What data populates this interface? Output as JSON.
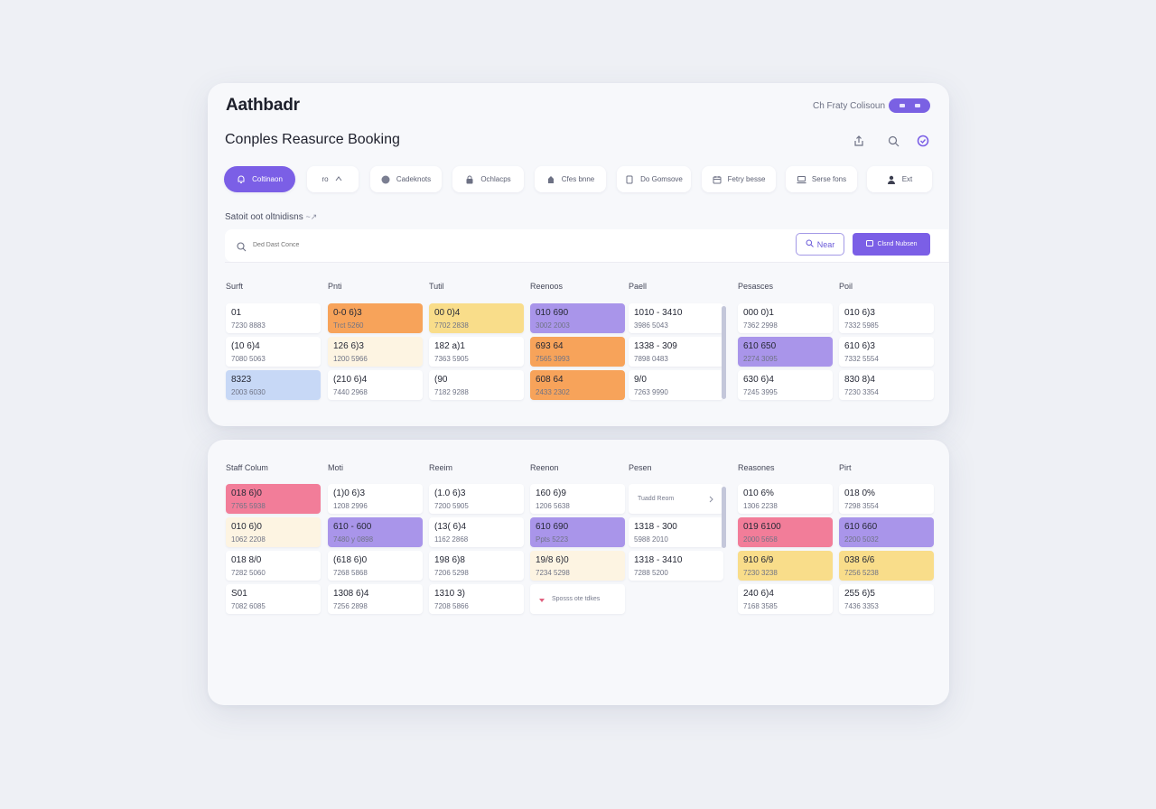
{
  "app": {
    "brand": "Aathbadr",
    "title": "Conples Reasurce Booking"
  },
  "header": {
    "link_text": "Ch Fraty Colisoun",
    "icons": [
      "share-icon",
      "search-icon",
      "check-circle-icon"
    ]
  },
  "filters": [
    {
      "label": "Coltinaon",
      "icon": "bell-icon",
      "active": true
    },
    {
      "label": "ro",
      "icon": "chevron-icon",
      "active": false
    },
    {
      "label": "Cadeknots",
      "icon": "circle-icon",
      "active": false
    },
    {
      "label": "Ochlacps",
      "icon": "lock-icon",
      "active": false
    },
    {
      "label": "Cfes bnne",
      "icon": "user-icon",
      "active": false
    },
    {
      "label": "Do Gomsove",
      "icon": "document-icon",
      "active": false
    },
    {
      "label": "Fetry besse",
      "icon": "calendar-icon",
      "active": false
    },
    {
      "label": "Serse fons",
      "icon": "laptop-icon",
      "active": false
    },
    {
      "label": "Ext",
      "icon": "person-icon",
      "active": false
    }
  ],
  "section": {
    "label": "Satoit oot oltnidisns"
  },
  "search": {
    "placeholder": "Ded Dast Conce",
    "near_label": "Near",
    "primary_label": "Clsnd Nubsen"
  },
  "board1": {
    "columns": [
      "Surft",
      "Pnti",
      "Tutil",
      "Reenoos",
      "Paell",
      "Pesasces",
      "Poil"
    ],
    "cells": [
      [
        {
          "l1": "01",
          "l2": "7230 8883",
          "color": "white"
        },
        {
          "l1": "(10 6)4",
          "l2": "7080 5063",
          "color": "white"
        },
        {
          "l1": "8323",
          "l2": "2003 6030",
          "color": "blue"
        }
      ],
      [
        {
          "l1": "0-0 6)3",
          "l2": "Trct 5260",
          "color": "orange"
        },
        {
          "l1": "126 6)3",
          "l2": "1200 5966",
          "color": "lightyellow"
        },
        {
          "l1": "(210 6)4",
          "l2": "7440 2968",
          "color": "white"
        }
      ],
      [
        {
          "l1": "00 0)4",
          "l2": "7702 2838",
          "color": "yellow"
        },
        {
          "l1": "182 a)1",
          "l2": "7363 5905",
          "color": "white"
        },
        {
          "l1": "(90",
          "l2": "7182 9288",
          "color": "white"
        }
      ],
      [
        {
          "l1": "010 690",
          "l2": "3002 2003",
          "color": "purple"
        },
        {
          "l1": "693 64",
          "l2": "7565 3993",
          "color": "orange"
        },
        {
          "l1": "608 64",
          "l2": "2433 2302",
          "color": "orange"
        }
      ],
      [
        {
          "l1": "1010 - 3410",
          "l2": "3986 5043",
          "color": "white"
        },
        {
          "l1": "1338 - 309",
          "l2": "7898 0483",
          "color": "white"
        },
        {
          "l1": "9/0",
          "l2": "7263 9990",
          "color": "white"
        }
      ],
      [
        {
          "l1": "000 0)1",
          "l2": "7362 2998",
          "color": "white"
        },
        {
          "l1": "610 650",
          "l2": "2274 3095",
          "color": "purple"
        },
        {
          "l1": "630 6)4",
          "l2": "7245 3995",
          "color": "white"
        }
      ],
      [
        {
          "l1": "010 6)3",
          "l2": "7332 5985",
          "color": "white"
        },
        {
          "l1": "610 6)3",
          "l2": "7332 5554",
          "color": "white"
        },
        {
          "l1": "830 8)4",
          "l2": "7230 3354",
          "color": "white"
        }
      ]
    ]
  },
  "board2": {
    "columns": [
      "Staff Colum",
      "Moti",
      "Reeim",
      "Reenon",
      "Pesen",
      "Reasones",
      "Pirt"
    ],
    "cells": [
      [
        {
          "l1": "018 6)0",
          "l2": "7765 5938",
          "color": "pink"
        },
        {
          "l1": "010 6)0",
          "l2": "1062 2208",
          "color": "lightyellow"
        },
        {
          "l1": "018 8/0",
          "l2": "7282 5060",
          "color": "white"
        },
        {
          "l1": "S01",
          "l2": "7082 6085",
          "color": "white"
        }
      ],
      [
        {
          "l1": "(1)0 6)3",
          "l2": "1208 2996",
          "color": "white"
        },
        {
          "l1": "610 - 600",
          "l2": "7480 y 0898",
          "color": "purple"
        },
        {
          "l1": "(618 6)0",
          "l2": "7268 5868",
          "color": "white"
        },
        {
          "l1": "1308 6)4",
          "l2": "7256 2898",
          "color": "white"
        }
      ],
      [
        {
          "l1": "(1.0 6)3",
          "l2": "7200 5905",
          "color": "white"
        },
        {
          "l1": "(13( 6)4",
          "l2": "1162 2868",
          "color": "white"
        },
        {
          "l1": "198 6)8",
          "l2": "7206 5298",
          "color": "white"
        },
        {
          "l1": "1310 3)",
          "l2": "7208 5866",
          "color": "white"
        }
      ],
      [
        {
          "l1": "160 6)9",
          "l2": "1206 5638",
          "color": "white"
        },
        {
          "l1": "610 690",
          "l2": "Ppts 5223",
          "color": "purple"
        },
        {
          "l1": "19/8 6)0",
          "l2": "7234 5298",
          "color": "lightyellow"
        },
        {
          "l1": "Sposss ote tdkes",
          "color": "action2"
        }
      ],
      [
        {
          "l1": "Tuadd Reom",
          "color": "action"
        },
        {
          "l1": "1318 - 300",
          "l2": "5988 2010",
          "color": "white"
        },
        {
          "l1": "1318 - 3410",
          "l2": "7288 5200",
          "color": "white"
        },
        {
          "color": "empty"
        }
      ],
      [
        {
          "l1": "010 6%",
          "l2": "1306 2238",
          "color": "white"
        },
        {
          "l1": "019 6100",
          "l2": "2000 5658",
          "color": "pink"
        },
        {
          "l1": "910 6/9",
          "l2": "7230 3238",
          "color": "yellow"
        },
        {
          "l1": "240 6)4",
          "l2": "7168 3585",
          "color": "white"
        }
      ],
      [
        {
          "l1": "018 0%",
          "l2": "7298 3554",
          "color": "white"
        },
        {
          "l1": "610 660",
          "l2": "2200 5032",
          "color": "purple"
        },
        {
          "l1": "038 6/6",
          "l2": "7256 5238",
          "color": "yellow"
        },
        {
          "l1": "255 6)5",
          "l2": "7436 3353",
          "color": "white"
        }
      ]
    ]
  }
}
